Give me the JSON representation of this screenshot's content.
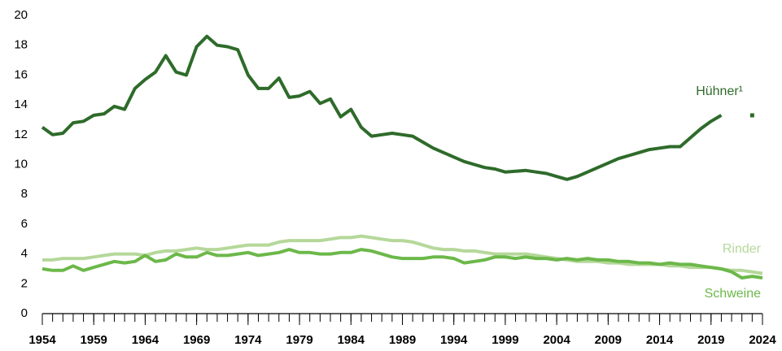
{
  "chart_data": {
    "type": "line",
    "x": [
      1954,
      1955,
      1956,
      1957,
      1958,
      1959,
      1960,
      1961,
      1962,
      1963,
      1964,
      1965,
      1966,
      1967,
      1968,
      1969,
      1970,
      1971,
      1972,
      1973,
      1974,
      1975,
      1976,
      1977,
      1978,
      1979,
      1980,
      1981,
      1982,
      1983,
      1984,
      1985,
      1986,
      1987,
      1988,
      1989,
      1990,
      1991,
      1992,
      1993,
      1994,
      1995,
      1996,
      1997,
      1998,
      1999,
      2000,
      2001,
      2002,
      2003,
      2004,
      2005,
      2006,
      2007,
      2008,
      2009,
      2010,
      2011,
      2012,
      2013,
      2014,
      2015,
      2016,
      2017,
      2018,
      2019,
      2020,
      2021,
      2022,
      2023,
      2024
    ],
    "series": [
      {
        "name": "Hühner¹",
        "color": "#2e6b2a",
        "values": [
          12.5,
          12.0,
          12.1,
          12.8,
          12.9,
          13.3,
          13.4,
          13.9,
          13.7,
          15.1,
          15.7,
          16.2,
          17.3,
          16.2,
          16.0,
          17.9,
          18.6,
          18.0,
          17.9,
          17.7,
          16.0,
          15.1,
          15.1,
          15.8,
          14.5,
          14.6,
          14.9,
          14.1,
          14.4,
          13.2,
          13.7,
          12.5,
          11.9,
          12.0,
          12.1,
          12.0,
          11.9,
          11.5,
          11.1,
          10.8,
          10.5,
          10.2,
          10.0,
          9.8,
          9.7,
          9.5,
          9.55,
          9.6,
          9.5,
          9.4,
          9.2,
          9.0,
          9.2,
          9.5,
          9.8,
          10.1,
          10.4,
          10.6,
          10.8,
          11.0,
          11.1,
          11.2,
          11.2,
          11.8,
          12.4,
          12.9,
          13.3,
          null,
          null,
          13.3,
          null
        ]
      },
      {
        "name": "Rinder",
        "color": "#b5d89a",
        "values": [
          3.6,
          3.6,
          3.7,
          3.7,
          3.7,
          3.8,
          3.9,
          4.0,
          4.0,
          4.0,
          3.9,
          4.1,
          4.2,
          4.2,
          4.3,
          4.4,
          4.3,
          4.3,
          4.4,
          4.5,
          4.6,
          4.6,
          4.6,
          4.8,
          4.9,
          4.9,
          4.9,
          4.9,
          5.0,
          5.1,
          5.1,
          5.2,
          5.1,
          5.0,
          4.9,
          4.9,
          4.8,
          4.6,
          4.4,
          4.3,
          4.3,
          4.2,
          4.2,
          4.1,
          4.0,
          4.0,
          4.0,
          4.0,
          3.9,
          3.8,
          3.7,
          3.6,
          3.5,
          3.5,
          3.5,
          3.4,
          3.4,
          3.3,
          3.3,
          3.3,
          3.3,
          3.2,
          3.2,
          3.1,
          3.1,
          3.1,
          3.0,
          2.9,
          2.9,
          2.8,
          2.7
        ]
      },
      {
        "name": "Schweine",
        "color": "#6cb84a",
        "values": [
          3.0,
          2.9,
          2.9,
          3.2,
          2.9,
          3.1,
          3.3,
          3.5,
          3.4,
          3.5,
          3.9,
          3.5,
          3.6,
          4.0,
          3.8,
          3.8,
          4.1,
          3.9,
          3.9,
          4.0,
          4.1,
          3.9,
          4.0,
          4.1,
          4.3,
          4.1,
          4.1,
          4.0,
          4.0,
          4.1,
          4.1,
          4.3,
          4.2,
          4.0,
          3.8,
          3.7,
          3.7,
          3.7,
          3.8,
          3.8,
          3.7,
          3.4,
          3.5,
          3.6,
          3.8,
          3.8,
          3.7,
          3.8,
          3.7,
          3.7,
          3.6,
          3.7,
          3.6,
          3.7,
          3.6,
          3.6,
          3.5,
          3.5,
          3.4,
          3.4,
          3.3,
          3.4,
          3.3,
          3.3,
          3.2,
          3.1,
          3.0,
          2.8,
          2.4,
          2.5,
          2.4
        ]
      }
    ],
    "xlim": [
      1954,
      2024
    ],
    "xticks": [
      1954,
      1959,
      1964,
      1969,
      1974,
      1979,
      1984,
      1989,
      1994,
      1999,
      2004,
      2009,
      2014,
      2019,
      2024
    ],
    "ylim": [
      0,
      20
    ],
    "yticks": [
      0,
      2,
      4,
      6,
      8,
      10,
      12,
      14,
      16,
      18,
      20
    ],
    "grid": false
  }
}
